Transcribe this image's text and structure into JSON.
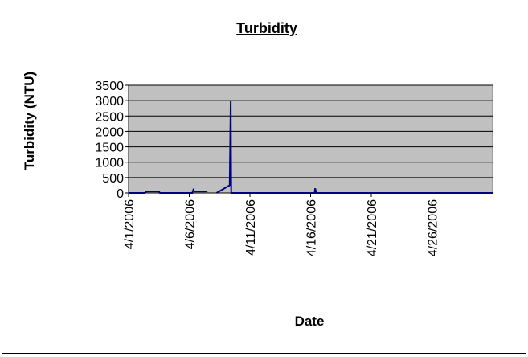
{
  "chart_data": {
    "type": "line",
    "title": "Turbidity",
    "x_label": "Date",
    "y_label": "Turbidity (NTU)",
    "x": [
      "2006-04-01T00:00",
      "2006-04-02T08:00",
      "2006-04-02T12:00",
      "2006-04-03T12:00",
      "2006-04-03T14:00",
      "2006-04-06T06:00",
      "2006-04-06T08:00",
      "2006-04-06T10:00",
      "2006-04-07T12:00",
      "2006-04-07T18:00",
      "2006-04-08T06:00",
      "2006-04-09T08:00",
      "2006-04-09T10:00",
      "2006-04-09T11:00",
      "2006-04-16T08:00",
      "2006-04-16T09:00",
      "2006-04-16T11:00",
      "2006-05-01T00:00"
    ],
    "series": [
      {
        "name": "Turbidity",
        "color": "#000080",
        "values": [
          0,
          0,
          50,
          50,
          0,
          0,
          100,
          50,
          50,
          null,
          0,
          250,
          3000,
          0,
          0,
          150,
          0,
          0
        ]
      }
    ],
    "xlim": [
      "2006-04-01T00:00",
      "2006-05-01T00:00"
    ],
    "xticks": [
      {
        "value": "2006-04-01T00:00",
        "label": "4/1/2006"
      },
      {
        "value": "2006-04-06T00:00",
        "label": "4/6/2006"
      },
      {
        "value": "2006-04-11T00:00",
        "label": "4/11/2006"
      },
      {
        "value": "2006-04-16T00:00",
        "label": "4/16/2006"
      },
      {
        "value": "2006-04-21T00:00",
        "label": "4/21/2006"
      },
      {
        "value": "2006-04-26T00:00",
        "label": "4/26/2006"
      }
    ],
    "ylim": [
      0,
      3500
    ],
    "yticks": [
      0,
      500,
      1000,
      1500,
      2000,
      2500,
      3000,
      3500
    ],
    "grid": true,
    "plot_background": "#c0c0c0"
  }
}
